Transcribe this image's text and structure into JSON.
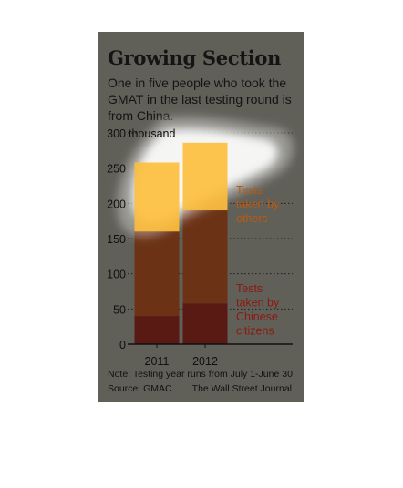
{
  "title": "Growing Section",
  "subtitle": "One in five people who took the GMAT in the last testing round is from China.",
  "note": "Note: Testing year runs from July 1-June 30",
  "source": "Source: GMAC",
  "credit": "The Wall Street Journal",
  "colors": {
    "background": "#605f58",
    "chinese": "#5a1a14",
    "others": "#6b3216",
    "highlight": "#fcbf3f",
    "others_label": "#b95a12",
    "chinese_label": "#8c1a10"
  },
  "chart_data": {
    "type": "bar",
    "stacked": true,
    "categories": [
      "2011",
      "2012"
    ],
    "series": [
      {
        "name": "Tests taken by Chinese citizens",
        "values": [
          40,
          58
        ]
      },
      {
        "name": "Tests taken by others",
        "values": [
          218,
          228
        ]
      }
    ],
    "totals": [
      258,
      286
    ],
    "ylim": [
      0,
      300
    ],
    "yticks": [
      0,
      50,
      100,
      150,
      200,
      250,
      300
    ],
    "yunit": "thousand",
    "grid": true,
    "legend": "right"
  }
}
